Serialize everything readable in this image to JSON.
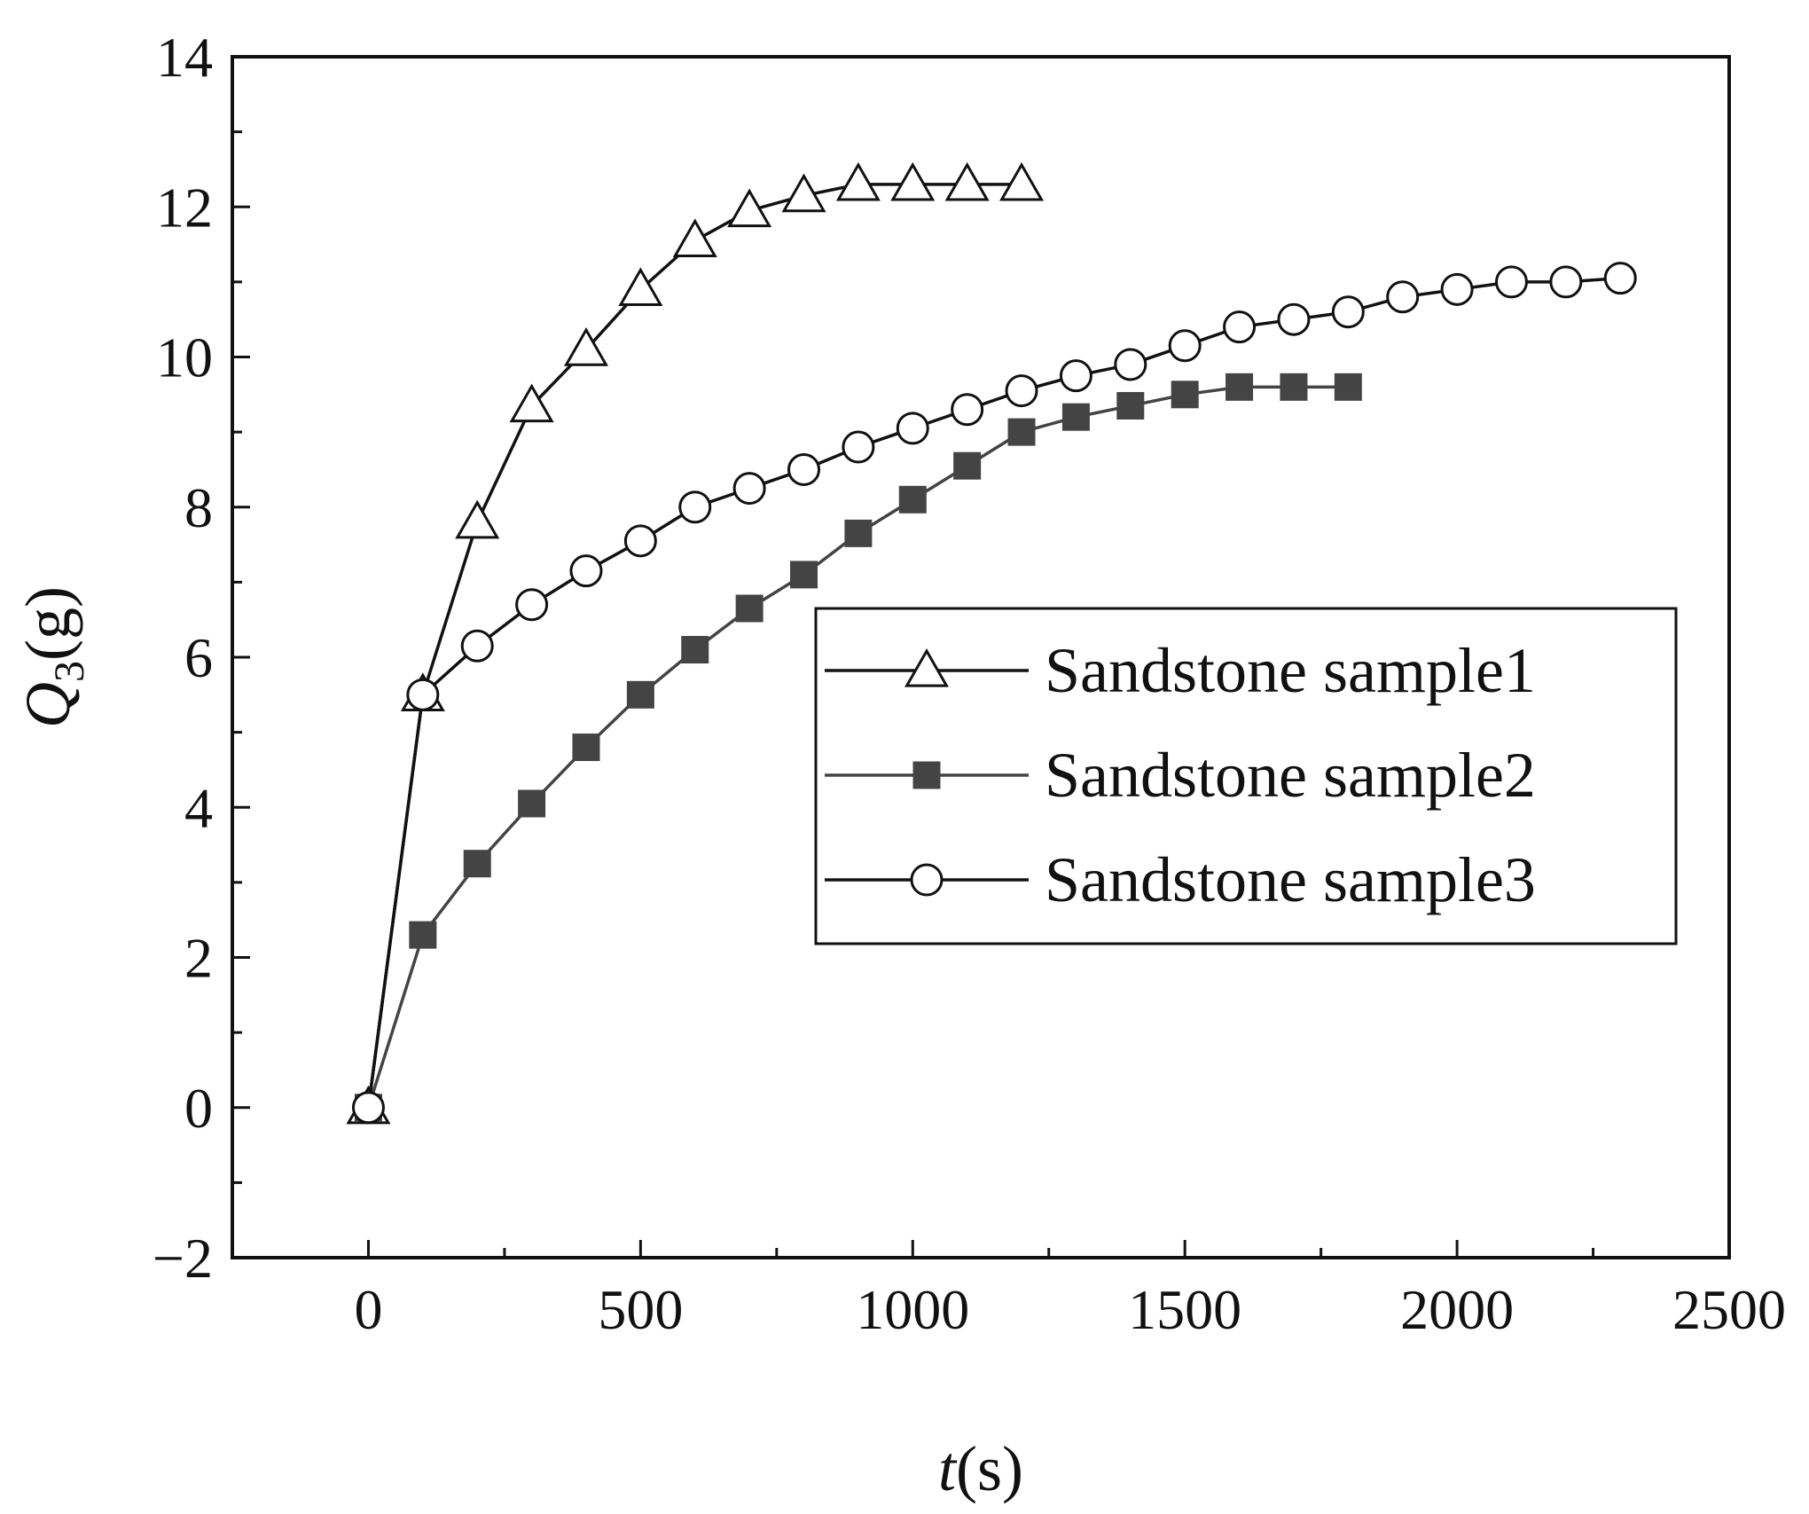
{
  "chart_data": {
    "type": "line",
    "title": "",
    "xlabel": {
      "var": "t",
      "unit": "(s)"
    },
    "ylabel": {
      "var": "Q",
      "sub": "3",
      "unit": "(g)"
    },
    "xlim": [
      -250,
      2500
    ],
    "ylim": [
      -2,
      14
    ],
    "xticks": [
      0,
      500,
      1000,
      1500,
      2000,
      2500
    ],
    "yticks": [
      -2,
      0,
      2,
      4,
      6,
      8,
      10,
      12,
      14
    ],
    "x_tick_labels": [
      "0",
      "500",
      "1000",
      "1500",
      "2000",
      "2500"
    ],
    "y_tick_labels": [
      "−2",
      "0",
      "2",
      "4",
      "6",
      "8",
      "10",
      "12",
      "14"
    ],
    "grid": false,
    "legend_position": "right-middle",
    "series": [
      {
        "name": "Sandstone sample1",
        "marker": "triangle-open",
        "color": "#111111",
        "x": [
          0,
          100,
          200,
          300,
          400,
          500,
          600,
          700,
          800,
          900,
          1000,
          1100,
          1200
        ],
        "y": [
          0,
          5.5,
          7.8,
          9.35,
          10.1,
          10.9,
          11.55,
          11.95,
          12.15,
          12.3,
          12.3,
          12.3,
          12.3
        ]
      },
      {
        "name": "Sandstone sample2",
        "marker": "square-filled",
        "color": "#444444",
        "x": [
          0,
          100,
          200,
          300,
          400,
          500,
          600,
          700,
          800,
          900,
          1000,
          1100,
          1200,
          1300,
          1400,
          1500,
          1600,
          1700,
          1800
        ],
        "y": [
          0,
          2.3,
          3.25,
          4.05,
          4.8,
          5.5,
          6.1,
          6.65,
          7.1,
          7.65,
          8.1,
          8.55,
          9.0,
          9.2,
          9.35,
          9.5,
          9.6,
          9.6,
          9.6
        ]
      },
      {
        "name": "Sandstone sample3",
        "marker": "circle-open",
        "color": "#111111",
        "x": [
          0,
          100,
          200,
          300,
          400,
          500,
          600,
          700,
          800,
          900,
          1000,
          1100,
          1200,
          1300,
          1400,
          1500,
          1600,
          1700,
          1800,
          1900,
          2000,
          2100,
          2200,
          2300
        ],
        "y": [
          0,
          5.5,
          6.15,
          6.7,
          7.15,
          7.55,
          8.0,
          8.25,
          8.5,
          8.8,
          9.05,
          9.3,
          9.55,
          9.75,
          9.9,
          10.15,
          10.4,
          10.5,
          10.6,
          10.8,
          10.9,
          11.0,
          11.0,
          11.05
        ]
      }
    ]
  }
}
